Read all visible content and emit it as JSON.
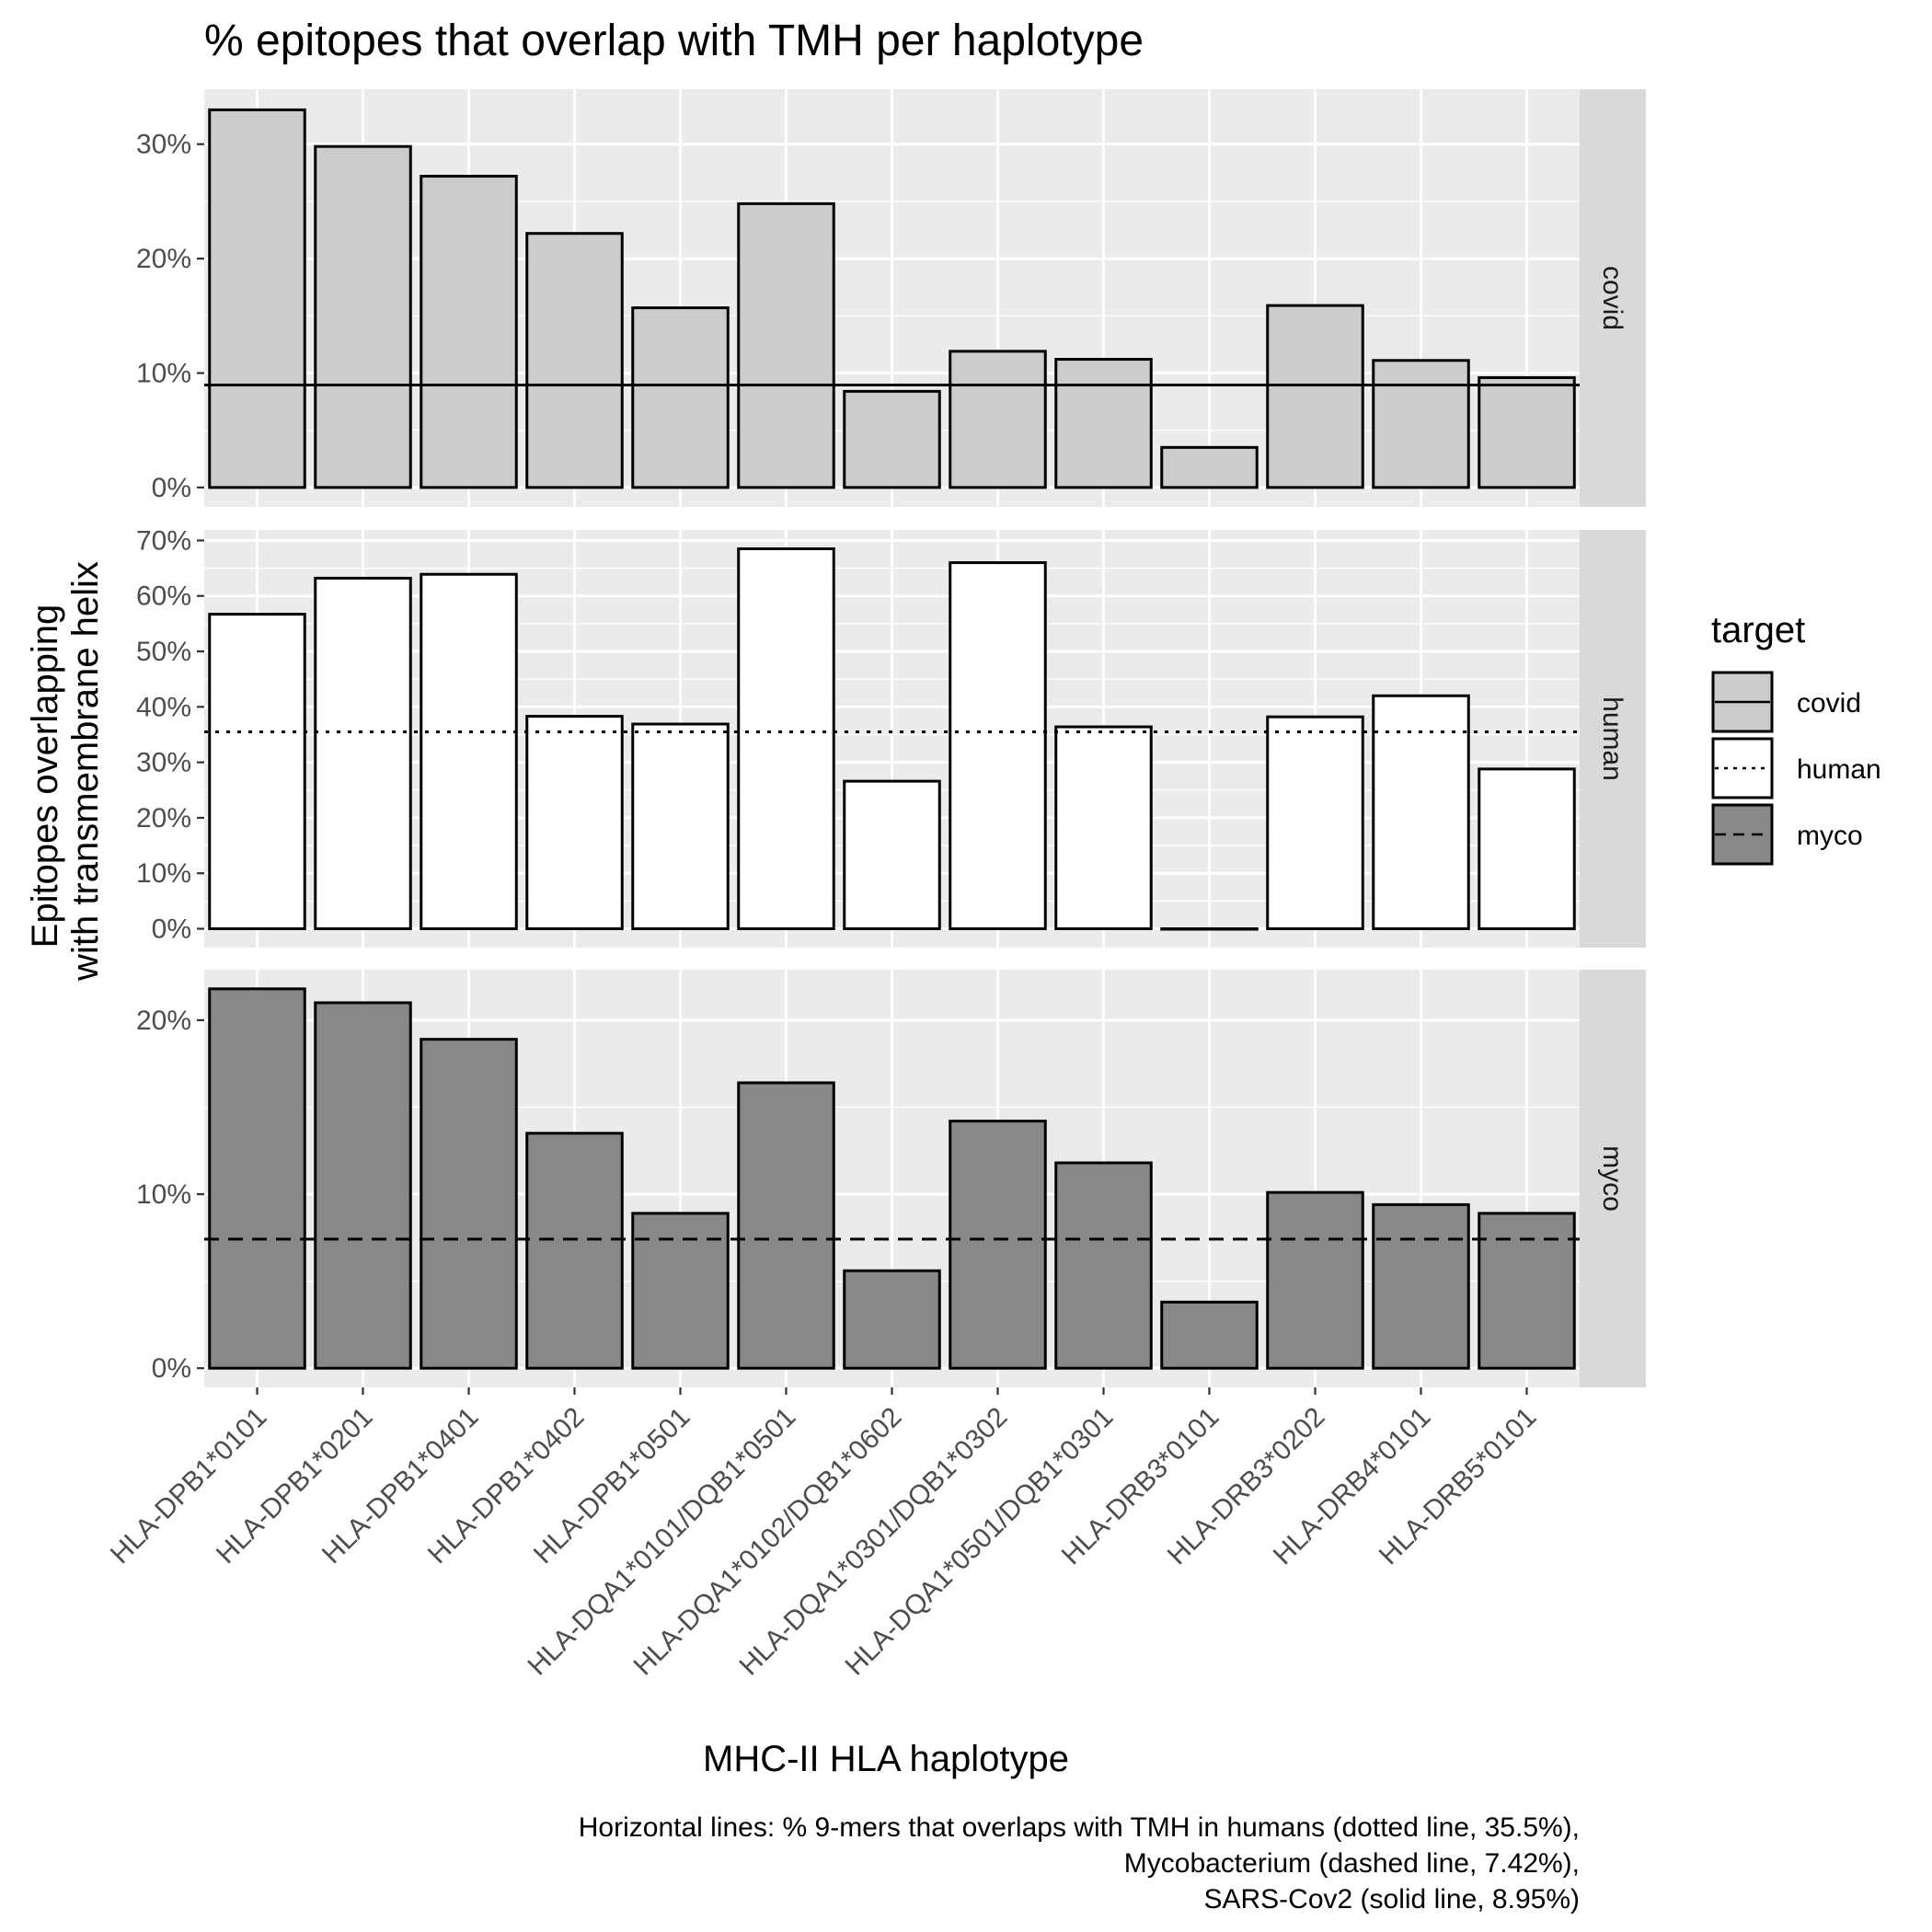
{
  "chart_data": {
    "type": "bar",
    "title": "% epitopes that overlap with TMH per haplotype",
    "xlabel": "MHC-II HLA haplotype",
    "ylabel_lines": [
      "Epitopes overlapping",
      "with transmembrane helix"
    ],
    "categories": [
      "HLA-DPB1*0101",
      "HLA-DPB1*0201",
      "HLA-DPB1*0401",
      "HLA-DPB1*0402",
      "HLA-DPB1*0501",
      "HLA-DQA1*0101/DQB1*0501",
      "HLA-DQA1*0102/DQB1*0602",
      "HLA-DQA1*0301/DQB1*0302",
      "HLA-DQA1*0501/DQB1*0301",
      "HLA-DRB3*0101",
      "HLA-DRB3*0202",
      "HLA-DRB4*0101",
      "HLA-DRB5*0101"
    ],
    "facets": [
      {
        "name": "covid",
        "fill": "#cccccc",
        "values": [
          33.0,
          29.8,
          27.2,
          22.2,
          15.7,
          24.8,
          8.4,
          11.9,
          11.2,
          3.5,
          15.9,
          11.1,
          9.6
        ],
        "reference_line": 8.95,
        "line_style": "solid",
        "ylim": [
          -1.7,
          34.8
        ],
        "yticks": [
          0,
          10,
          20,
          30
        ],
        "ytick_labels": [
          "0%",
          "10%",
          "20%",
          "30%"
        ]
      },
      {
        "name": "human",
        "fill": "#ffffff",
        "values": [
          56.7,
          63.2,
          63.9,
          38.3,
          36.9,
          68.5,
          26.6,
          66.0,
          36.4,
          0.0,
          38.2,
          42.0,
          28.8
        ],
        "reference_line": 35.5,
        "line_style": "dotted",
        "ylim": [
          -3.4,
          71.9
        ],
        "yticks": [
          0,
          10,
          20,
          30,
          40,
          50,
          60,
          70
        ],
        "ytick_labels": [
          "0%",
          "10%",
          "20%",
          "30%",
          "40%",
          "50%",
          "60%",
          "70%"
        ]
      },
      {
        "name": "myco",
        "fill": "#888888",
        "values": [
          21.8,
          21.0,
          18.9,
          13.5,
          8.9,
          16.4,
          5.6,
          14.2,
          11.8,
          3.8,
          10.1,
          9.4,
          8.9
        ],
        "reference_line": 7.42,
        "line_style": "dashed",
        "ylim": [
          -1.1,
          22.9
        ],
        "yticks": [
          0,
          10,
          20
        ],
        "ytick_labels": [
          "0%",
          "10%",
          "20%"
        ]
      }
    ],
    "legend": {
      "title": "target",
      "placement": "right",
      "entries": [
        {
          "label": "covid",
          "fill": "#cccccc",
          "line_style": "solid"
        },
        {
          "label": "human",
          "fill": "#ffffff",
          "line_style": "dotted"
        },
        {
          "label": "myco",
          "fill": "#888888",
          "line_style": "dashed"
        }
      ]
    },
    "caption_lines": [
      "Horizontal lines: % 9-mers that overlaps with TMH in humans (dotted line, 35.5%),",
      "Mycobacterium (dashed line, 7.42%),",
      "SARS-Cov2 (solid line, 8.95%)"
    ],
    "panel_background": "#ebebeb",
    "strip_background": "#d9d9d9",
    "grid": true
  }
}
